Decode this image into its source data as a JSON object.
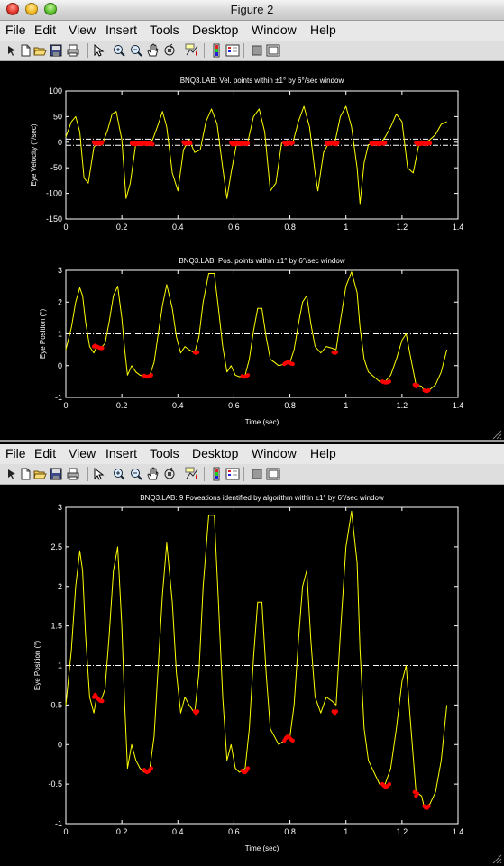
{
  "window": {
    "title": "Figure 2"
  },
  "menu": [
    "File",
    "Edit",
    "View",
    "Insert",
    "Tools",
    "Desktop",
    "Window",
    "Help"
  ],
  "toolbar_icons": [
    "pointer-arrow-icon",
    "new-figure-icon",
    "open-file-icon",
    "save-icon",
    "print-icon",
    "edit-plot-icon",
    "zoom-in-icon",
    "zoom-out-icon",
    "pan-icon",
    "rotate-3d-icon",
    "data-cursor-icon",
    "insert-colorbar-icon",
    "insert-legend-icon",
    "hide-plot-tools-icon",
    "show-plot-tools-icon"
  ],
  "colors": {
    "trace": "#ffff00",
    "marker": "#ff0000",
    "axes": "#ffffff",
    "background": "#000000"
  },
  "chart_data": [
    {
      "type": "line",
      "title": "BNQ3.LAB: Vel. points within ±1° by 6°/sec window",
      "xlabel": "",
      "ylabel": "Eye Velocity (°/sec)",
      "xlim": [
        0,
        1.4
      ],
      "ylim": [
        -150,
        100
      ],
      "xticks": [
        "0",
        "0.2",
        "0.4",
        "0.6",
        "0.8",
        "1",
        "1.2",
        "1.4"
      ],
      "yticks": [
        "100",
        "50",
        "0",
        "-50",
        "-100",
        "-150"
      ],
      "hlines": [
        6,
        -6
      ],
      "series": [
        {
          "x": [
            0,
            0.02,
            0.035,
            0.05,
            0.065,
            0.08,
            0.1,
            0.115,
            0.13,
            0.15,
            0.165,
            0.18,
            0.2,
            0.215,
            0.23,
            0.25,
            0.27,
            0.29,
            0.31,
            0.33,
            0.345,
            0.36,
            0.38,
            0.4,
            0.42,
            0.44,
            0.46,
            0.48,
            0.5,
            0.52,
            0.54,
            0.56,
            0.575,
            0.59,
            0.61,
            0.63,
            0.65,
            0.67,
            0.69,
            0.71,
            0.73,
            0.75,
            0.77,
            0.79,
            0.81,
            0.83,
            0.85,
            0.87,
            0.89,
            0.9,
            0.92,
            0.94,
            0.96,
            0.98,
            1.0,
            1.02,
            1.04,
            1.05,
            1.065,
            1.08,
            1.1,
            1.12,
            1.14,
            1.16,
            1.18,
            1.2,
            1.22,
            1.24,
            1.26,
            1.28,
            1.3,
            1.32,
            1.34,
            1.36
          ],
          "y": [
            10,
            40,
            50,
            20,
            -70,
            -80,
            -10,
            0,
            -5,
            25,
            55,
            60,
            5,
            -110,
            -80,
            -2,
            2,
            -1,
            5,
            35,
            60,
            30,
            -60,
            -95,
            -15,
            5,
            -20,
            -15,
            40,
            65,
            35,
            -50,
            -110,
            -60,
            -2,
            -5,
            2,
            50,
            65,
            20,
            -95,
            -80,
            -2,
            3,
            -2,
            40,
            70,
            30,
            -60,
            -95,
            -20,
            0,
            -2,
            50,
            70,
            30,
            -50,
            -120,
            -40,
            -5,
            -2,
            -5,
            10,
            30,
            55,
            40,
            -50,
            -60,
            -5,
            -2,
            5,
            15,
            35,
            40
          ]
        }
      ],
      "markers": [
        {
          "x": [
            0.1,
            0.105,
            0.11,
            0.115,
            0.12,
            0.125,
            0.13
          ],
          "y": [
            0,
            -3,
            0,
            -3,
            0,
            -3,
            0
          ]
        },
        {
          "x": [
            0.235,
            0.24,
            0.245,
            0.25,
            0.255,
            0.26,
            0.265,
            0.27,
            0.275,
            0.28,
            0.285,
            0.29,
            0.295,
            0.3,
            0.305,
            0.31
          ],
          "y": [
            -2,
            -4,
            -1,
            -4,
            -2,
            -3,
            -1,
            -4,
            -2,
            -3,
            -2,
            -4,
            -1,
            -3,
            -2,
            -4
          ]
        },
        {
          "x": [
            0.42,
            0.425,
            0.43,
            0.435,
            0.44,
            0.445
          ],
          "y": [
            0,
            -3,
            0,
            -3,
            0,
            -2
          ]
        },
        {
          "x": [
            0.59,
            0.595,
            0.6,
            0.605,
            0.61,
            0.615,
            0.62,
            0.625,
            0.63,
            0.635,
            0.64,
            0.645,
            0.65
          ],
          "y": [
            -1,
            -4,
            -2,
            -4,
            0,
            -3,
            -1,
            -4,
            -2,
            -3,
            -1,
            -4,
            -2
          ]
        },
        {
          "x": [
            0.78,
            0.785,
            0.79,
            0.795,
            0.8,
            0.805,
            0.81
          ],
          "y": [
            -1,
            -4,
            -2,
            -3,
            0,
            -3,
            -1
          ]
        },
        {
          "x": [
            0.93,
            0.935,
            0.94,
            0.945,
            0.95,
            0.955,
            0.96,
            0.965,
            0.97
          ],
          "y": [
            -2,
            -4,
            -1,
            -3,
            0,
            -3,
            -2,
            -4,
            -1
          ]
        },
        {
          "x": [
            1.09,
            1.095,
            1.1,
            1.105,
            1.11,
            1.115,
            1.12,
            1.125,
            1.13,
            1.135,
            1.14
          ],
          "y": [
            -2,
            -4,
            -1,
            -3,
            -2,
            -4,
            -1,
            -3,
            -2,
            -3,
            -1
          ]
        },
        {
          "x": [
            1.25,
            1.255,
            1.26,
            1.265,
            1.27,
            1.275,
            1.28,
            1.285,
            1.29,
            1.295,
            1.3
          ],
          "y": [
            -1,
            -4,
            -2,
            -4,
            0,
            -3,
            -2,
            -4,
            -1,
            -3,
            -2
          ]
        }
      ]
    },
    {
      "type": "line",
      "title": "BNQ3.LAB: Pos. points within ±1° by 6°/sec window",
      "xlabel": "Time (sec)",
      "ylabel": "Eye Position (°)",
      "xlim": [
        0,
        1.4
      ],
      "ylim": [
        -1,
        3
      ],
      "xticks": [
        "0",
        "0.2",
        "0.4",
        "0.6",
        "0.8",
        "1",
        "1.2",
        "1.4"
      ],
      "yticks": [
        "3",
        "2",
        "1",
        "0",
        "-1"
      ],
      "hlines": [
        1
      ],
      "series": [
        {
          "x": [
            0,
            0.02,
            0.035,
            0.05,
            0.06,
            0.07,
            0.085,
            0.1,
            0.11,
            0.125,
            0.14,
            0.155,
            0.17,
            0.185,
            0.2,
            0.21,
            0.22,
            0.235,
            0.25,
            0.265,
            0.28,
            0.3,
            0.315,
            0.33,
            0.345,
            0.36,
            0.38,
            0.395,
            0.41,
            0.425,
            0.44,
            0.46,
            0.475,
            0.49,
            0.51,
            0.53,
            0.545,
            0.56,
            0.575,
            0.59,
            0.605,
            0.62,
            0.64,
            0.655,
            0.67,
            0.685,
            0.7,
            0.715,
            0.73,
            0.745,
            0.76,
            0.78,
            0.8,
            0.815,
            0.83,
            0.845,
            0.86,
            0.875,
            0.89,
            0.91,
            0.93,
            0.95,
            0.965,
            0.98,
            1.0,
            1.02,
            1.04,
            1.05,
            1.065,
            1.08,
            1.1,
            1.12,
            1.14,
            1.16,
            1.18,
            1.2,
            1.215,
            1.23,
            1.25,
            1.27,
            1.28,
            1.3,
            1.32,
            1.34,
            1.36
          ],
          "y": [
            0.5,
            1.2,
            2.0,
            2.45,
            2.2,
            1.4,
            0.6,
            0.4,
            0.6,
            0.55,
            0.7,
            1.4,
            2.2,
            2.5,
            1.5,
            0.5,
            -0.3,
            0.0,
            -0.2,
            -0.3,
            -0.35,
            -0.3,
            0.1,
            1.0,
            1.9,
            2.55,
            1.8,
            0.9,
            0.4,
            0.6,
            0.5,
            0.4,
            0.9,
            2.0,
            2.9,
            2.9,
            1.8,
            0.6,
            -0.2,
            0.0,
            -0.3,
            -0.35,
            -0.3,
            0.2,
            1.1,
            1.8,
            1.8,
            0.9,
            0.2,
            0.1,
            0.0,
            0.05,
            0.1,
            0.5,
            1.3,
            2.0,
            2.2,
            1.3,
            0.6,
            0.4,
            0.6,
            0.55,
            0.5,
            1.4,
            2.5,
            2.95,
            2.3,
            1.2,
            0.2,
            -0.2,
            -0.35,
            -0.5,
            -0.5,
            -0.3,
            0.2,
            0.8,
            1.0,
            0.3,
            -0.6,
            -0.65,
            -0.8,
            -0.75,
            -0.6,
            -0.2,
            0.5
          ]
        }
      ],
      "markers": [
        {
          "x": [
            0.1,
            0.105,
            0.11,
            0.115,
            0.12,
            0.125,
            0.13
          ],
          "y": [
            0.6,
            0.63,
            0.6,
            0.58,
            0.56,
            0.55,
            0.55
          ]
        },
        {
          "x": [
            0.28,
            0.285,
            0.29,
            0.295,
            0.3,
            0.305
          ],
          "y": [
            -0.32,
            -0.34,
            -0.35,
            -0.34,
            -0.32,
            -0.3
          ]
        },
        {
          "x": [
            0.46,
            0.465,
            0.47
          ],
          "y": [
            0.42,
            0.4,
            0.42
          ]
        },
        {
          "x": [
            0.63,
            0.635,
            0.64,
            0.645,
            0.65
          ],
          "y": [
            -0.33,
            -0.35,
            -0.35,
            -0.33,
            -0.3
          ]
        },
        {
          "x": [
            0.78,
            0.785,
            0.79,
            0.795,
            0.8,
            0.805,
            0.81
          ],
          "y": [
            0.05,
            0.08,
            0.1,
            0.1,
            0.08,
            0.06,
            0.05
          ]
        },
        {
          "x": [
            0.955,
            0.96,
            0.965
          ],
          "y": [
            0.42,
            0.4,
            0.42
          ]
        },
        {
          "x": [
            1.13,
            1.135,
            1.14,
            1.145,
            1.15,
            1.155
          ],
          "y": [
            -0.5,
            -0.52,
            -0.53,
            -0.53,
            -0.52,
            -0.5
          ]
        },
        {
          "x": [
            1.245,
            1.25,
            1.255
          ],
          "y": [
            -0.6,
            -0.65,
            -0.62
          ]
        },
        {
          "x": [
            1.28,
            1.285,
            1.29,
            1.295
          ],
          "y": [
            -0.78,
            -0.8,
            -0.8,
            -0.78
          ]
        }
      ]
    },
    {
      "type": "line",
      "title": "BNQ3.LAB:  9  Foveations identified by algorithm within    ±1° by 6°/sec window",
      "xlabel": "Time (sec)",
      "ylabel": "Eye Position (°)",
      "xlim": [
        0,
        1.4
      ],
      "ylim": [
        -1,
        3
      ],
      "xticks": [
        "0",
        "0.2",
        "0.4",
        "0.6",
        "0.8",
        "1",
        "1.2",
        "1.4"
      ],
      "yticks": [
        "3",
        "2.5",
        "2",
        "1.5",
        "1",
        "0.5",
        "0",
        "-0.5",
        "-1"
      ],
      "hlines": [
        1
      ],
      "series": [
        {
          "x": [
            0,
            0.02,
            0.035,
            0.05,
            0.06,
            0.07,
            0.085,
            0.1,
            0.11,
            0.125,
            0.14,
            0.155,
            0.17,
            0.185,
            0.2,
            0.21,
            0.22,
            0.235,
            0.25,
            0.265,
            0.28,
            0.3,
            0.315,
            0.33,
            0.345,
            0.36,
            0.38,
            0.395,
            0.41,
            0.425,
            0.44,
            0.46,
            0.475,
            0.49,
            0.51,
            0.53,
            0.545,
            0.56,
            0.575,
            0.59,
            0.605,
            0.62,
            0.64,
            0.655,
            0.67,
            0.685,
            0.7,
            0.715,
            0.73,
            0.745,
            0.76,
            0.78,
            0.8,
            0.815,
            0.83,
            0.845,
            0.86,
            0.875,
            0.89,
            0.91,
            0.93,
            0.95,
            0.965,
            0.98,
            1.0,
            1.02,
            1.04,
            1.05,
            1.065,
            1.08,
            1.1,
            1.12,
            1.14,
            1.16,
            1.18,
            1.2,
            1.215,
            1.23,
            1.25,
            1.27,
            1.28,
            1.3,
            1.32,
            1.34,
            1.36
          ],
          "y": [
            0.5,
            1.2,
            2.0,
            2.45,
            2.2,
            1.4,
            0.6,
            0.4,
            0.6,
            0.55,
            0.7,
            1.4,
            2.2,
            2.5,
            1.5,
            0.5,
            -0.3,
            0.0,
            -0.2,
            -0.3,
            -0.35,
            -0.3,
            0.1,
            1.0,
            1.9,
            2.55,
            1.8,
            0.9,
            0.4,
            0.6,
            0.5,
            0.4,
            0.9,
            2.0,
            2.9,
            2.9,
            1.8,
            0.6,
            -0.2,
            0.0,
            -0.3,
            -0.35,
            -0.3,
            0.2,
            1.1,
            1.8,
            1.8,
            0.9,
            0.2,
            0.1,
            0.0,
            0.05,
            0.1,
            0.5,
            1.3,
            2.0,
            2.2,
            1.3,
            0.6,
            0.4,
            0.6,
            0.55,
            0.5,
            1.4,
            2.5,
            2.95,
            2.3,
            1.2,
            0.2,
            -0.2,
            -0.35,
            -0.5,
            -0.5,
            -0.3,
            0.2,
            0.8,
            1.0,
            0.3,
            -0.6,
            -0.65,
            -0.8,
            -0.75,
            -0.6,
            -0.2,
            0.5
          ]
        }
      ],
      "markers": [
        {
          "x": [
            0.1,
            0.105,
            0.11,
            0.115,
            0.12,
            0.125,
            0.13
          ],
          "y": [
            0.6,
            0.63,
            0.6,
            0.58,
            0.56,
            0.55,
            0.55
          ]
        },
        {
          "x": [
            0.28,
            0.285,
            0.29,
            0.295,
            0.3,
            0.305
          ],
          "y": [
            -0.32,
            -0.34,
            -0.35,
            -0.34,
            -0.32,
            -0.3
          ]
        },
        {
          "x": [
            0.46,
            0.465,
            0.47
          ],
          "y": [
            0.42,
            0.4,
            0.42
          ]
        },
        {
          "x": [
            0.63,
            0.635,
            0.64,
            0.645,
            0.65
          ],
          "y": [
            -0.33,
            -0.35,
            -0.35,
            -0.33,
            -0.3
          ]
        },
        {
          "x": [
            0.78,
            0.785,
            0.79,
            0.795,
            0.8,
            0.805,
            0.81
          ],
          "y": [
            0.05,
            0.08,
            0.1,
            0.1,
            0.08,
            0.06,
            0.05
          ]
        },
        {
          "x": [
            0.955,
            0.96,
            0.965
          ],
          "y": [
            0.42,
            0.4,
            0.42
          ]
        },
        {
          "x": [
            1.13,
            1.135,
            1.14,
            1.145,
            1.15,
            1.155
          ],
          "y": [
            -0.5,
            -0.52,
            -0.53,
            -0.53,
            -0.52,
            -0.5
          ]
        },
        {
          "x": [
            1.245,
            1.25,
            1.255
          ],
          "y": [
            -0.6,
            -0.65,
            -0.62
          ]
        },
        {
          "x": [
            1.28,
            1.285,
            1.29,
            1.295
          ],
          "y": [
            -0.78,
            -0.8,
            -0.8,
            -0.78
          ]
        }
      ]
    }
  ]
}
